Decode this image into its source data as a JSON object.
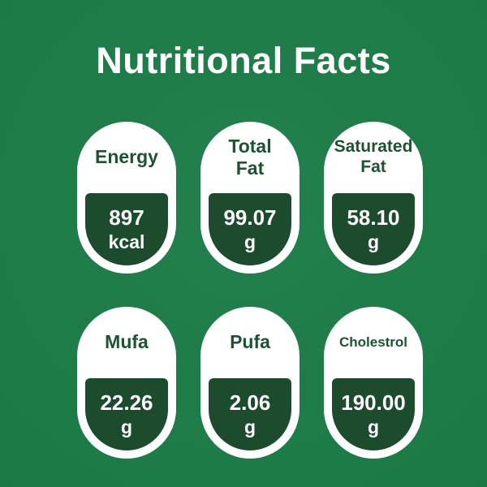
{
  "title": "Nutritional Facts",
  "colors": {
    "background": "#1b7a46",
    "card_background": "#ffffff",
    "value_background": "#1c4b2d",
    "label_text": "#1f5233",
    "value_text": "#ffffff",
    "title_text": "#ffffff"
  },
  "cards": [
    {
      "label": "Energy",
      "value": "897",
      "unit": "kcal"
    },
    {
      "label": "Total Fat",
      "value": "99.07",
      "unit": "g"
    },
    {
      "label": "Saturated Fat",
      "value": "58.10",
      "unit": "g"
    },
    {
      "label": "Mufa",
      "value": "22.26",
      "unit": "g"
    },
    {
      "label": "Pufa",
      "value": "2.06",
      "unit": "g"
    },
    {
      "label": "Cholestrol",
      "value": "190.00",
      "unit": "g"
    }
  ]
}
